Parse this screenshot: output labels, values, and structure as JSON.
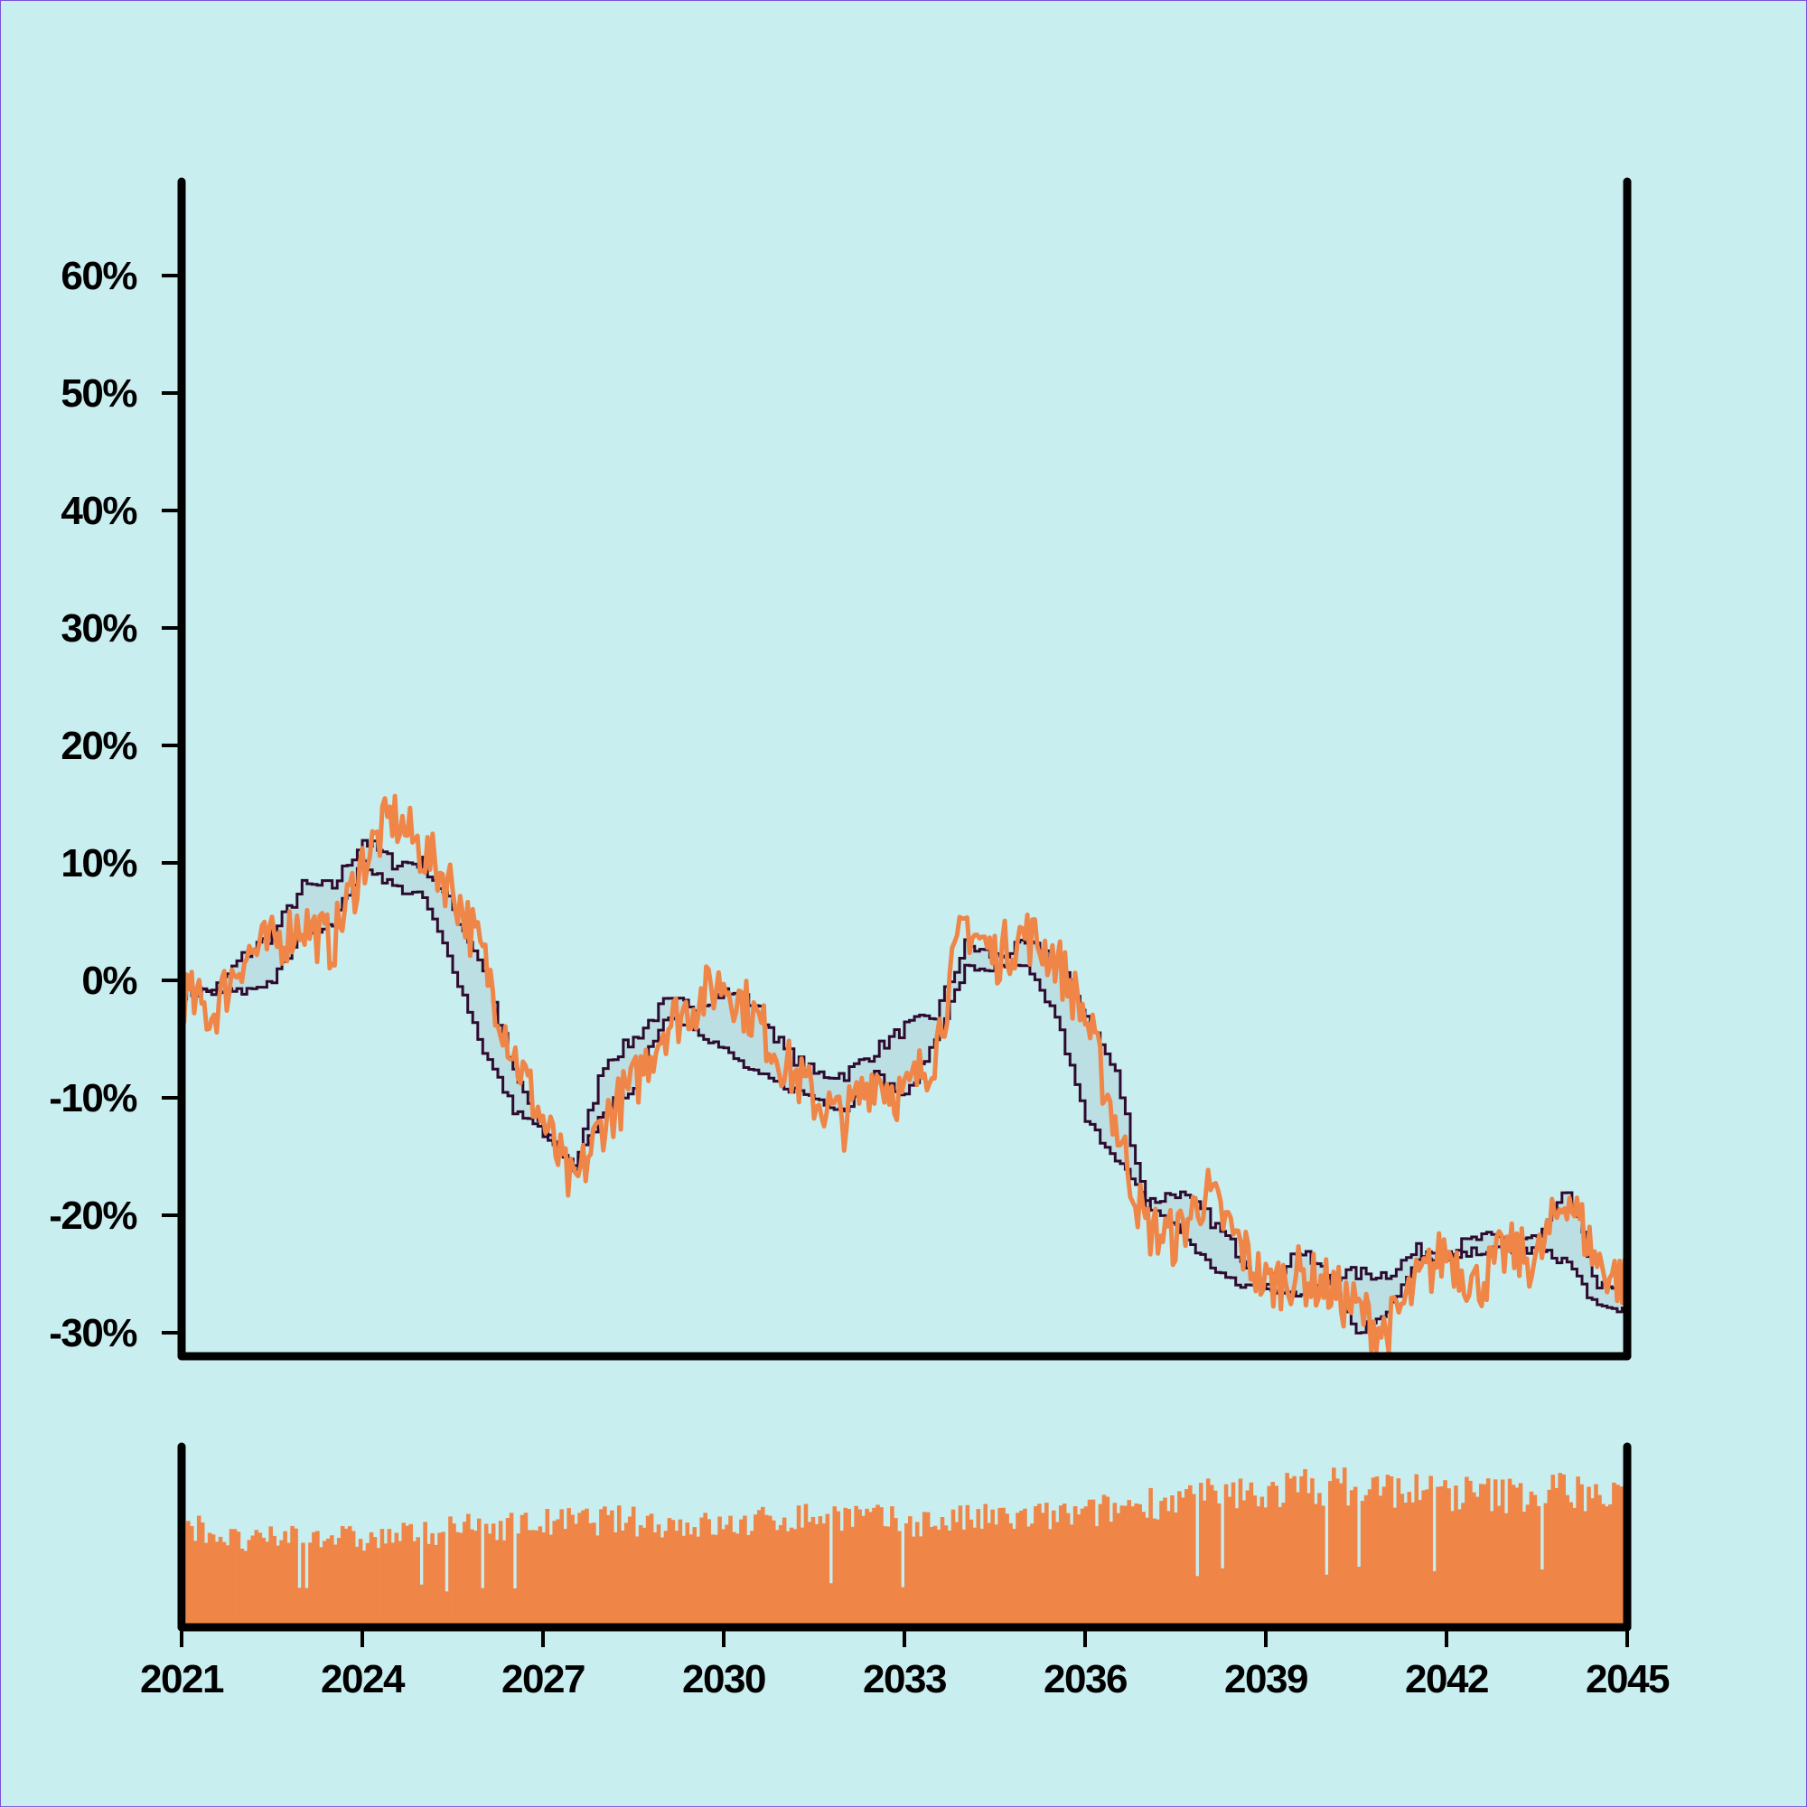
{
  "colors": {
    "background": "#c9eef0",
    "price": "#ef8547",
    "band": "#2d0a2e",
    "band_fill": "#bcdfe4",
    "volume": "#ef8547",
    "axis": "#000000"
  },
  "chart_data": {
    "type": "line",
    "title": "",
    "xlabel": "",
    "ylabel": "",
    "x_range": [
      "2021",
      "2045"
    ],
    "x_ticks": [
      "2021",
      "2024",
      "2027",
      "2030",
      "2033",
      "2036",
      "2039",
      "2042",
      "2045"
    ],
    "ylim": [
      -32,
      68
    ],
    "y_ticks": [
      -30,
      -20,
      -10,
      0,
      10,
      20,
      30,
      40,
      50,
      60
    ],
    "y_tick_labels": [
      "-30%",
      "-20%",
      "-10%",
      "0%",
      "10%",
      "20%",
      "30%",
      "40%",
      "50%",
      "60%"
    ],
    "grid": false,
    "legend": "none",
    "series": [
      {
        "role": "price",
        "x": [
          2021.0,
          2021.5,
          2022.0,
          2022.5,
          2023.0,
          2023.5,
          2024.0,
          2024.5,
          2025.0,
          2025.5,
          2026.0,
          2026.5,
          2027.0,
          2027.5,
          2028.0,
          2028.5,
          2029.0,
          2029.5,
          2030.0,
          2030.5,
          2031.0,
          2031.5,
          2032.0,
          2032.5,
          2033.0,
          2033.5,
          2034.0,
          2034.5,
          2035.0,
          2035.5,
          2036.0,
          2036.5,
          2037.0,
          2037.5,
          2038.0,
          2038.5,
          2039.0,
          2039.5,
          2040.0,
          2040.5,
          2041.0,
          2041.5,
          2042.0,
          2042.5,
          2043.0,
          2043.5,
          2044.0,
          2044.5,
          2045.0
        ],
        "y": [
          -1,
          -3,
          2,
          3,
          5,
          3,
          10,
          14,
          11,
          8,
          2,
          -6,
          -12,
          -18,
          -12,
          -9,
          -4,
          -2,
          0,
          -3,
          -7,
          -10,
          -12,
          -8,
          -10,
          -6,
          5,
          2,
          4,
          2,
          -3,
          -12,
          -21,
          -22,
          -18,
          -22,
          -26,
          -25,
          -26,
          -28,
          -30,
          -26,
          -23,
          -26,
          -23,
          -24,
          -18,
          -24,
          -26
        ]
      },
      {
        "role": "band_upper",
        "x": [
          2021.0,
          2021.5,
          2022.0,
          2022.5,
          2023.0,
          2023.5,
          2024.0,
          2024.5,
          2025.0,
          2025.5,
          2026.0,
          2026.5,
          2027.0,
          2027.5,
          2028.0,
          2028.5,
          2029.0,
          2029.5,
          2030.0,
          2030.5,
          2031.0,
          2031.5,
          2032.0,
          2032.5,
          2033.0,
          2033.5,
          2034.0,
          2034.5,
          2035.0,
          2035.5,
          2036.0,
          2036.5,
          2037.0,
          2037.5,
          2038.0,
          2038.5,
          2039.0,
          2039.5,
          2040.0,
          2040.5,
          2041.0,
          2041.5,
          2042.0,
          2042.5,
          2043.0,
          2043.5,
          2044.0,
          2044.5,
          2045.0
        ],
        "y": [
          -1,
          -1,
          2,
          4,
          8,
          8,
          12,
          10,
          10,
          6,
          1,
          -8,
          -13,
          -16,
          -7,
          -5,
          -2,
          -2,
          -1,
          -2,
          -6,
          -8,
          -8,
          -6,
          -4,
          -3,
          3,
          2,
          3,
          2,
          -3,
          -8,
          -19,
          -18,
          -20,
          -23,
          -26,
          -23,
          -25,
          -25,
          -25,
          -23,
          -23,
          -22,
          -22,
          -22,
          -18,
          -26,
          -27
        ]
      },
      {
        "role": "band_lower",
        "x": [
          2021.0,
          2021.5,
          2022.0,
          2022.5,
          2023.0,
          2023.5,
          2024.0,
          2024.5,
          2025.0,
          2025.5,
          2026.0,
          2026.5,
          2027.0,
          2027.5,
          2028.0,
          2028.5,
          2029.0,
          2029.5,
          2030.0,
          2030.5,
          2031.0,
          2031.5,
          2032.0,
          2032.5,
          2033.0,
          2033.5,
          2034.0,
          2034.5,
          2035.0,
          2035.5,
          2036.0,
          2036.5,
          2037.0,
          2037.5,
          2038.0,
          2038.5,
          2039.0,
          2039.5,
          2040.0,
          2040.5,
          2041.0,
          2041.5,
          2042.0,
          2042.5,
          2043.0,
          2043.5,
          2044.0,
          2044.5,
          2045.0
        ],
        "y": [
          -1,
          -1,
          -1,
          0,
          4,
          5,
          10,
          8,
          7,
          1,
          -6,
          -11,
          -13,
          -16,
          -11,
          -9,
          -3,
          -4,
          -6,
          -8,
          -9,
          -10,
          -11,
          -8,
          -10,
          -5,
          1,
          1,
          1,
          -3,
          -12,
          -15,
          -19,
          -21,
          -24,
          -26,
          -26,
          -27,
          -25,
          -30,
          -28,
          -24,
          -24,
          -23,
          -23,
          -23,
          -24,
          -28,
          -28
        ]
      },
      {
        "role": "volume",
        "x": [
          2021.0,
          2022.0,
          2023.0,
          2024.0,
          2025.0,
          2026.0,
          2027.0,
          2028.0,
          2029.0,
          2030.0,
          2031.0,
          2032.0,
          2033.0,
          2034.0,
          2035.0,
          2036.0,
          2037.0,
          2038.0,
          2039.0,
          2040.0,
          2041.0,
          2042.0,
          2043.0,
          2044.0,
          2045.0
        ],
        "y": [
          0.6,
          0.48,
          0.55,
          0.5,
          0.55,
          0.58,
          0.6,
          0.62,
          0.6,
          0.58,
          0.63,
          0.65,
          0.6,
          0.62,
          0.63,
          0.65,
          0.72,
          0.75,
          0.78,
          0.82,
          0.8,
          0.78,
          0.76,
          0.8,
          0.72
        ]
      }
    ]
  }
}
